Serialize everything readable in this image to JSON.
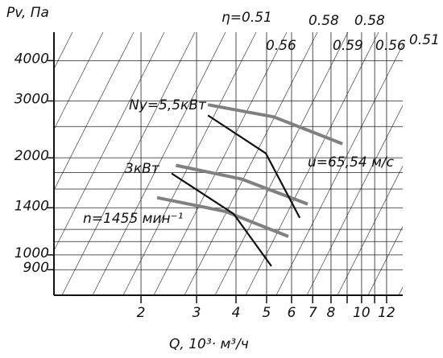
{
  "chart_data": {
    "type": "line",
    "y_label": "Pv, Па",
    "x_label": "Q, 10³· м³/ч",
    "log_x": true,
    "log_y": true,
    "xlim": [
      1.06,
      13.5
    ],
    "ylim": [
      750,
      4900
    ],
    "xticks": [
      2,
      3,
      4,
      5,
      6,
      7,
      8,
      10,
      12
    ],
    "x_minor_ticks": [
      9,
      11
    ],
    "yticks": [
      4000,
      3000,
      2000,
      1400,
      1000,
      900
    ],
    "y_minor_ticks": [
      2500,
      1800,
      1600,
      1200,
      1100
    ],
    "grid": true,
    "series": [
      {
        "name": "Ny=5,5кВт",
        "color": "#808080",
        "x": [
          3.26,
          5.27,
          8.7
        ],
        "values": [
          2920,
          2677,
          2210
        ]
      },
      {
        "name": "3кВт",
        "color": "#808080",
        "x": [
          2.58,
          4.17,
          6.75
        ],
        "values": [
          1895,
          1718,
          1437
        ]
      },
      {
        "name": "n=1455 мин⁻¹",
        "color": "#808080",
        "x": [
          2.25,
          3.7,
          5.86
        ],
        "values": [
          1505,
          1364,
          1141
        ]
      },
      {
        "color": "#111111",
        "x": [
          3.26,
          4.97,
          6.37
        ],
        "values": [
          2707,
          2065,
          1303
        ]
      },
      {
        "color": "#111111",
        "x": [
          2.5,
          3.93,
          5.18
        ],
        "values": [
          1789,
          1341,
          923
        ]
      }
    ],
    "annotations": [
      "η=0.51",
      "0.58",
      "0.58",
      "0.56",
      "0.59",
      "0.56",
      "0.51",
      "u=65,54 м/с"
    ]
  }
}
